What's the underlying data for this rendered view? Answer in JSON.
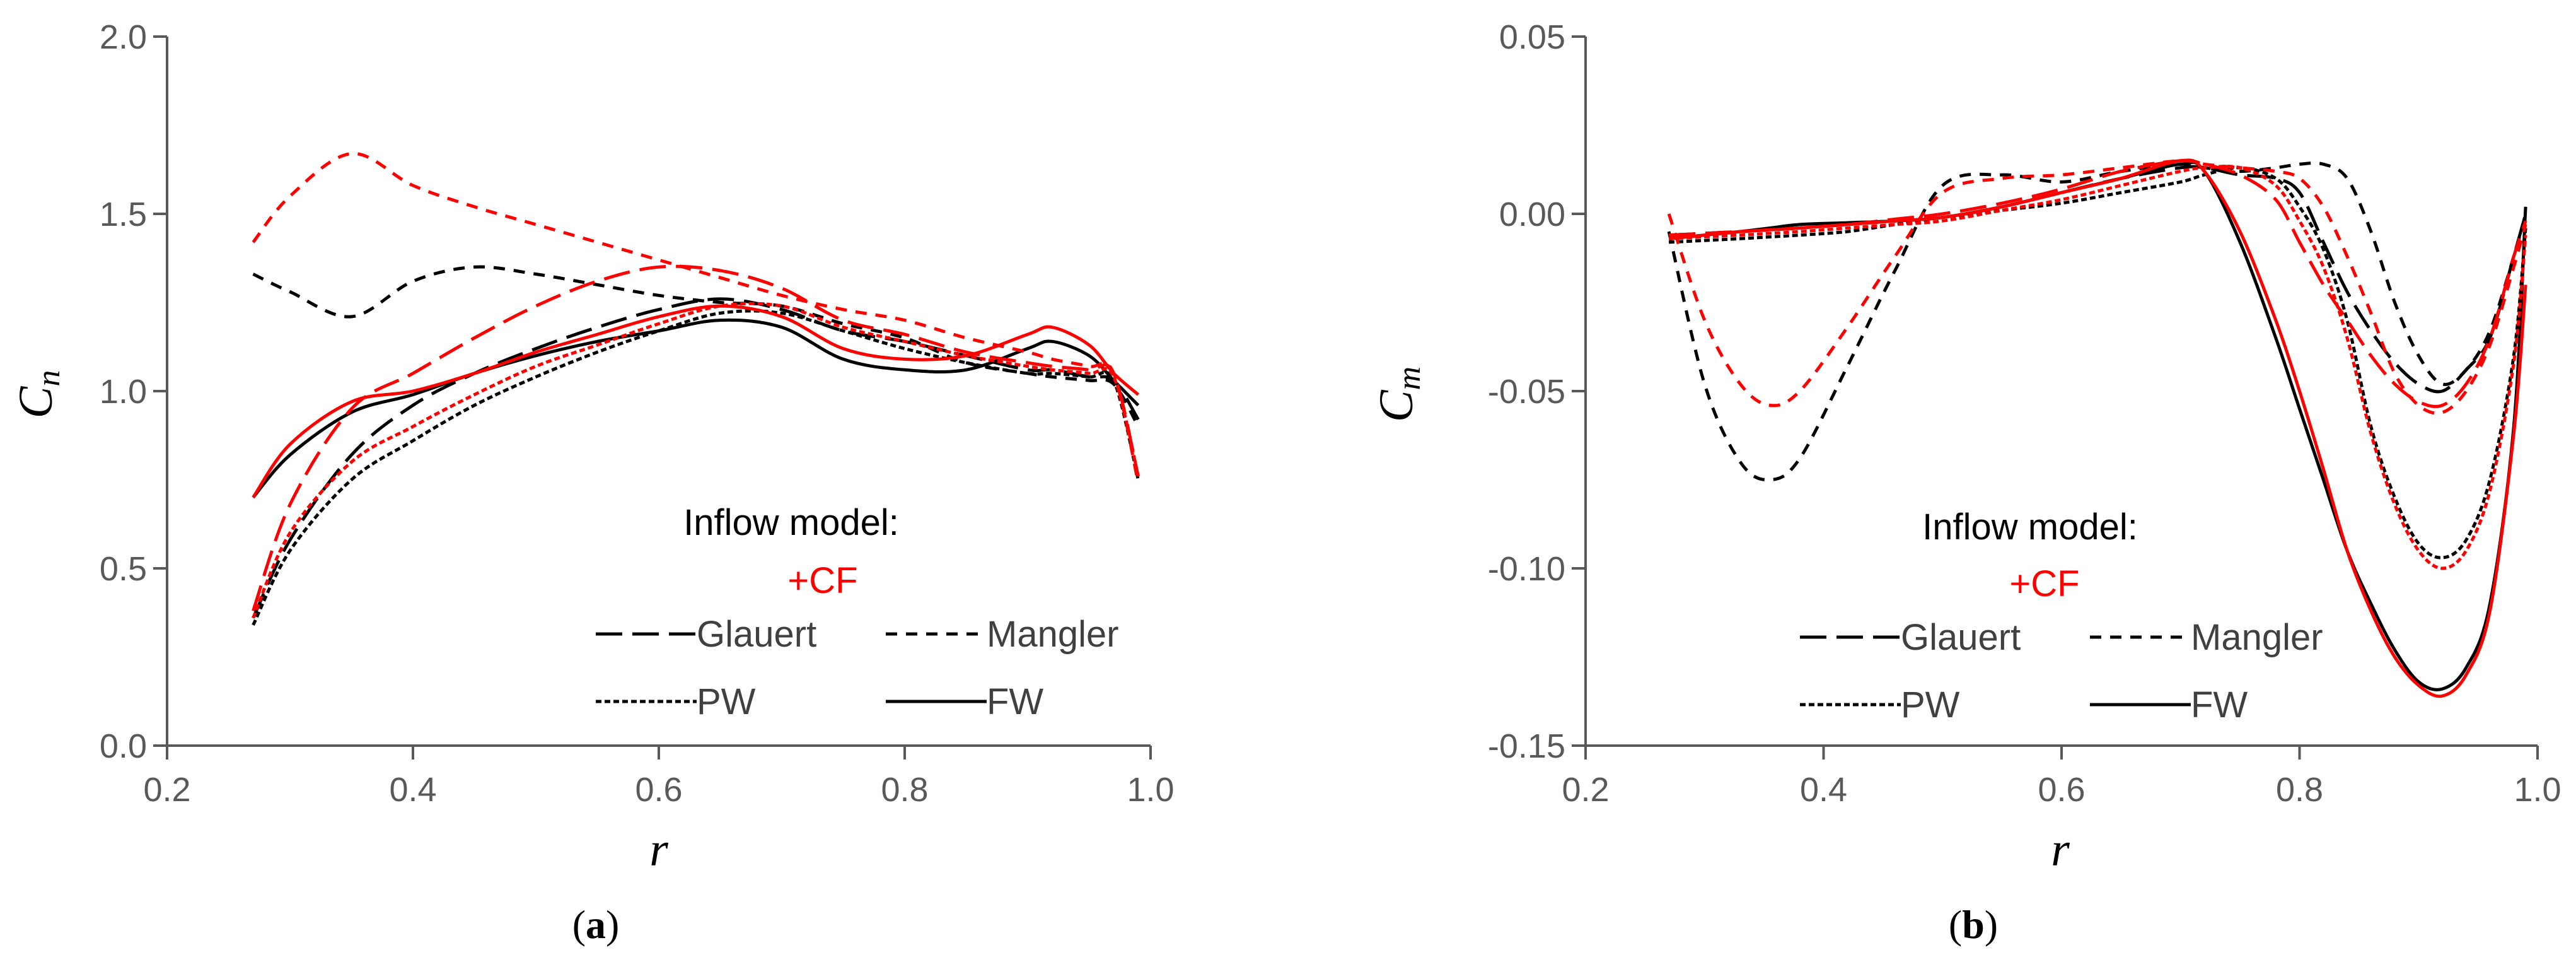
{
  "colors": {
    "base": "#000000",
    "cf": "#ff0000",
    "axis": "#595959"
  },
  "legend": {
    "title": "Inflow model:",
    "cf_label": "+CF",
    "items": [
      {
        "label": "Glauert",
        "style": "long-dash"
      },
      {
        "label": "Mangler",
        "style": "dash"
      },
      {
        "label": "PW",
        "style": "short-dash"
      },
      {
        "label": "FW",
        "style": "solid"
      }
    ]
  },
  "chart_data": [
    {
      "type": "line",
      "panel": "a",
      "caption": {
        "open": "(",
        "letter": "a",
        "close": ")"
      },
      "xlabel": "r",
      "ylabel": {
        "main": "C",
        "sub": "n"
      },
      "xlim": [
        0.2,
        1.0
      ],
      "ylim": [
        0.0,
        2.0
      ],
      "xticks": [
        "0.2",
        "0.4",
        "0.6",
        "0.8",
        "1.0"
      ],
      "yticks": [
        "0.0",
        "0.5",
        "1.0",
        "1.5",
        "2.0"
      ],
      "x": [
        0.27,
        0.3,
        0.35,
        0.4,
        0.45,
        0.5,
        0.55,
        0.6,
        0.65,
        0.7,
        0.75,
        0.8,
        0.85,
        0.9,
        0.92,
        0.95,
        0.97,
        0.99
      ],
      "series": [
        {
          "name": "Glauert",
          "cf": false,
          "values": [
            0.36,
            0.58,
            0.82,
            0.96,
            1.05,
            1.12,
            1.18,
            1.23,
            1.26,
            1.23,
            1.17,
            1.14,
            1.1,
            1.06,
            1.06,
            1.04,
            1.03,
            0.92
          ]
        },
        {
          "name": "Mangler",
          "cf": false,
          "values": [
            1.33,
            1.28,
            1.21,
            1.31,
            1.35,
            1.33,
            1.3,
            1.27,
            1.25,
            1.24,
            1.19,
            1.15,
            1.08,
            1.05,
            1.04,
            1.03,
            1.02,
            0.9
          ]
        },
        {
          "name": "PW",
          "cf": false,
          "values": [
            0.34,
            0.55,
            0.75,
            0.86,
            0.96,
            1.04,
            1.11,
            1.17,
            1.22,
            1.22,
            1.17,
            1.12,
            1.08,
            1.05,
            1.05,
            1.04,
            1.03,
            0.75
          ]
        },
        {
          "name": "FW",
          "cf": false,
          "values": [
            0.7,
            0.82,
            0.94,
            0.99,
            1.05,
            1.1,
            1.14,
            1.17,
            1.2,
            1.18,
            1.09,
            1.06,
            1.06,
            1.12,
            1.14,
            1.1,
            1.03,
            0.96
          ]
        },
        {
          "name": "Glauert",
          "cf": true,
          "values": [
            0.38,
            0.68,
            0.95,
            1.05,
            1.15,
            1.24,
            1.31,
            1.35,
            1.34,
            1.29,
            1.2,
            1.16,
            1.11,
            1.08,
            1.07,
            1.06,
            1.05,
            0.76
          ]
        },
        {
          "name": "Mangler",
          "cf": true,
          "values": [
            1.42,
            1.55,
            1.67,
            1.58,
            1.52,
            1.47,
            1.42,
            1.37,
            1.32,
            1.27,
            1.23,
            1.2,
            1.15,
            1.11,
            1.09,
            1.07,
            1.05,
            0.74
          ]
        },
        {
          "name": "PW",
          "cf": true,
          "values": [
            0.36,
            0.6,
            0.8,
            0.9,
            0.99,
            1.07,
            1.13,
            1.19,
            1.24,
            1.24,
            1.18,
            1.14,
            1.1,
            1.07,
            1.06,
            1.05,
            1.04,
            0.76
          ]
        },
        {
          "name": "FW",
          "cf": true,
          "values": [
            0.7,
            0.85,
            0.97,
            1.0,
            1.05,
            1.11,
            1.16,
            1.21,
            1.24,
            1.21,
            1.12,
            1.09,
            1.1,
            1.16,
            1.18,
            1.13,
            1.05,
            0.99
          ]
        }
      ]
    },
    {
      "type": "line",
      "panel": "b",
      "caption": {
        "open": "(",
        "letter": "b",
        "close": ")"
      },
      "xlabel": "r",
      "ylabel": {
        "main": "C",
        "sub": "m"
      },
      "xlim": [
        0.2,
        1.0
      ],
      "ylim": [
        -0.15,
        0.05
      ],
      "xticks": [
        "0.2",
        "0.4",
        "0.6",
        "0.8",
        "1.0"
      ],
      "yticks": [
        "-0.15",
        "-0.10",
        "-0.05",
        "0.00",
        "0.05"
      ],
      "x": [
        0.27,
        0.3,
        0.33,
        0.355,
        0.38,
        0.42,
        0.46,
        0.5,
        0.55,
        0.6,
        0.65,
        0.7,
        0.72,
        0.75,
        0.78,
        0.8,
        0.82,
        0.84,
        0.86,
        0.88,
        0.9,
        0.92,
        0.94,
        0.96,
        0.98,
        0.99
      ],
      "series": [
        {
          "name": "Glauert",
          "cf": false,
          "values": [
            -0.006,
            -0.0055,
            -0.005,
            -0.0045,
            -0.004,
            -0.003,
            -0.002,
            -0.001,
            0.002,
            0.006,
            0.01,
            0.013,
            0.013,
            0.011,
            0.01,
            0.006,
            -0.008,
            -0.022,
            -0.033,
            -0.042,
            -0.048,
            -0.05,
            -0.044,
            -0.035,
            -0.012,
            0.0
          ]
        },
        {
          "name": "Mangler",
          "cf": false,
          "values": [
            -0.005,
            -0.048,
            -0.07,
            -0.075,
            -0.069,
            -0.043,
            -0.016,
            0.008,
            0.011,
            0.009,
            0.012,
            0.014,
            0.013,
            0.012,
            0.013,
            0.014,
            0.014,
            0.01,
            -0.005,
            -0.025,
            -0.04,
            -0.048,
            -0.044,
            -0.033,
            -0.012,
            0.0
          ]
        },
        {
          "name": "PW",
          "cf": false,
          "values": [
            -0.008,
            -0.0075,
            -0.007,
            -0.0065,
            -0.006,
            -0.005,
            -0.003,
            -0.001,
            0.001,
            0.003,
            0.006,
            0.009,
            0.011,
            0.013,
            0.01,
            0.002,
            -0.01,
            -0.03,
            -0.06,
            -0.08,
            -0.093,
            -0.097,
            -0.092,
            -0.075,
            -0.04,
            -0.004
          ]
        },
        {
          "name": "FW",
          "cf": false,
          "values": [
            -0.007,
            -0.006,
            -0.005,
            -0.004,
            -0.003,
            -0.0025,
            -0.002,
            -0.001,
            0.002,
            0.006,
            0.01,
            0.014,
            0.012,
            -0.008,
            -0.035,
            -0.055,
            -0.075,
            -0.095,
            -0.11,
            -0.123,
            -0.132,
            -0.134,
            -0.128,
            -0.11,
            -0.06,
            0.002
          ]
        },
        {
          "name": "Glauert",
          "cf": true,
          "values": [
            -0.006,
            -0.0055,
            -0.005,
            -0.0045,
            -0.004,
            -0.003,
            -0.0015,
            0.0,
            0.003,
            0.007,
            0.012,
            0.015,
            0.014,
            0.011,
            0.004,
            -0.008,
            -0.02,
            -0.03,
            -0.04,
            -0.048,
            -0.053,
            -0.054,
            -0.048,
            -0.035,
            -0.012,
            -0.002
          ]
        },
        {
          "name": "Mangler",
          "cf": true,
          "values": [
            0.0,
            -0.03,
            -0.048,
            -0.054,
            -0.05,
            -0.032,
            -0.012,
            0.006,
            0.01,
            0.011,
            0.013,
            0.015,
            0.014,
            0.013,
            0.012,
            0.01,
            0.002,
            -0.012,
            -0.028,
            -0.045,
            -0.054,
            -0.056,
            -0.05,
            -0.037,
            -0.015,
            -0.003
          ]
        },
        {
          "name": "PW",
          "cf": true,
          "values": [
            -0.007,
            -0.0065,
            -0.006,
            -0.0055,
            -0.005,
            -0.004,
            -0.003,
            -0.002,
            0.001,
            0.004,
            0.008,
            0.012,
            0.013,
            0.013,
            0.008,
            -0.002,
            -0.015,
            -0.035,
            -0.062,
            -0.082,
            -0.095,
            -0.1,
            -0.095,
            -0.078,
            -0.042,
            -0.006
          ]
        },
        {
          "name": "FW",
          "cf": true,
          "values": [
            -0.007,
            -0.006,
            -0.005,
            -0.0045,
            -0.004,
            -0.003,
            -0.002,
            -0.001,
            0.002,
            0.006,
            0.01,
            0.015,
            0.012,
            -0.005,
            -0.03,
            -0.05,
            -0.072,
            -0.095,
            -0.112,
            -0.125,
            -0.133,
            -0.136,
            -0.13,
            -0.112,
            -0.062,
            -0.02
          ]
        }
      ]
    }
  ]
}
